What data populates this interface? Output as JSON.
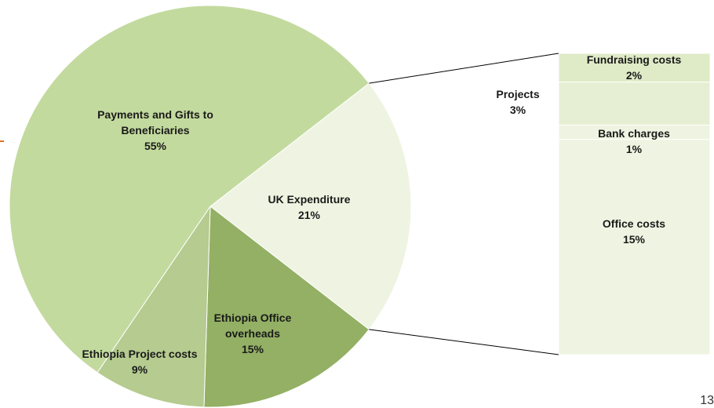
{
  "chart_data": [
    {
      "type": "pie",
      "categories": [
        "UK Expenditure",
        "Ethiopia Office overheads",
        "Ethiopia Project costs",
        "Payments and Gifts to Beneficiaries"
      ],
      "values": [
        21,
        15,
        9,
        55
      ],
      "value_labels": [
        "21%",
        "15%",
        "9%",
        "55%"
      ],
      "colors": [
        "#eef4e1",
        "#93b064",
        "#b5cb8f",
        "#c3da9e"
      ]
    },
    {
      "type": "bar",
      "categories": [
        "Fundraising costs",
        "Projects",
        "Bank charges",
        "Office costs"
      ],
      "values": [
        2,
        3,
        1,
        15
      ],
      "value_labels": [
        "2%",
        "3%",
        "1%",
        "15%"
      ],
      "colors": [
        "#dfeac6",
        "#e6efd3",
        "#eef4e1",
        "#eef4e1"
      ]
    }
  ],
  "page_number": "13"
}
